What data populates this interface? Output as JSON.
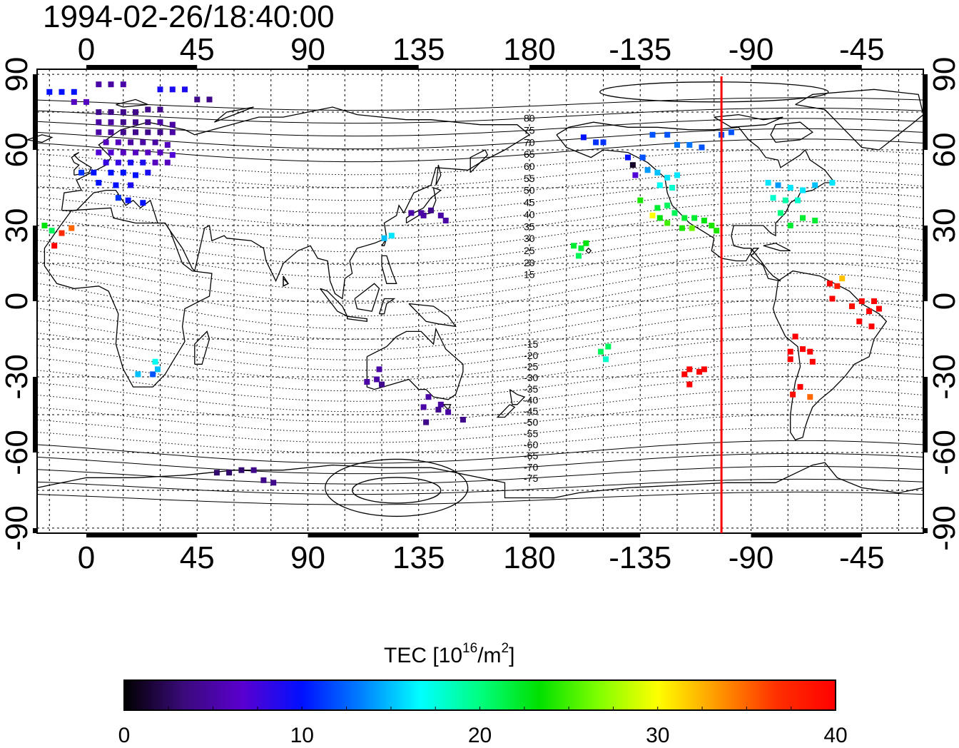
{
  "title": "1994-02-26/18:40:00",
  "map": {
    "lon_ticks": [
      "0",
      "45",
      "90",
      "135",
      "180",
      "-135",
      "-90",
      "-45"
    ],
    "lat_ticks": [
      "90",
      "60",
      "30",
      "0",
      "-30",
      "-60",
      "-90"
    ],
    "lon_tick_values": [
      0,
      45,
      90,
      135,
      180,
      225,
      270,
      315
    ],
    "lat_tick_values": [
      90,
      60,
      30,
      0,
      -30,
      -60,
      -90
    ],
    "lon_range": [
      -20,
      340
    ],
    "lat_range": [
      -92,
      92
    ],
    "grid": true,
    "terminator_line": {
      "lon": 258,
      "color": "#ff0000"
    },
    "mlat_labels_north": [
      "80",
      "75",
      "70",
      "65",
      "60",
      "55",
      "50",
      "45",
      "40",
      "35",
      "30",
      "25",
      "20",
      "15"
    ],
    "mlat_labels_south": [
      "-15",
      "-20",
      "-25",
      "-30",
      "-35",
      "-40",
      "-45",
      "-50",
      "-55",
      "-60",
      "-65",
      "-70",
      "-75"
    ]
  },
  "colorbar": {
    "label_prefix": "TEC  [10",
    "label_sup1": "16",
    "label_mid": "/m",
    "label_sup2": "2",
    "label_suffix": "]",
    "ticks": [
      "0",
      "10",
      "20",
      "30",
      "40"
    ],
    "tick_values": [
      0,
      10,
      20,
      30,
      40
    ],
    "range": [
      0,
      40
    ],
    "colors": [
      "#000000",
      "#3a0a7a",
      "#5a00d0",
      "#0010ff",
      "#0080ff",
      "#00ffff",
      "#00ff80",
      "#00e000",
      "#80ff00",
      "#ffff00",
      "#ff9900",
      "#ff3000",
      "#ff0000"
    ]
  },
  "tec_points": [
    {
      "lon": -15,
      "lat": 83,
      "tec": 10
    },
    {
      "lon": -10,
      "lat": 83,
      "tec": 10
    },
    {
      "lon": -5,
      "lat": 83,
      "tec": 10
    },
    {
      "lon": 5,
      "lat": 86,
      "tec": 5
    },
    {
      "lon": 10,
      "lat": 86,
      "tec": 5
    },
    {
      "lon": 15,
      "lat": 86,
      "tec": 5
    },
    {
      "lon": 30,
      "lat": 84,
      "tec": 9
    },
    {
      "lon": 35,
      "lat": 84,
      "tec": 9
    },
    {
      "lon": 40,
      "lat": 84,
      "tec": 9
    },
    {
      "lon": 45,
      "lat": 80,
      "tec": 4
    },
    {
      "lon": 50,
      "lat": 80,
      "tec": 4
    },
    {
      "lon": -5,
      "lat": 79,
      "tec": 6
    },
    {
      "lon": 0,
      "lat": 79,
      "tec": 6
    },
    {
      "lon": 5,
      "lat": 75,
      "tec": 4
    },
    {
      "lon": 10,
      "lat": 75,
      "tec": 4
    },
    {
      "lon": 15,
      "lat": 75,
      "tec": 4
    },
    {
      "lon": 20,
      "lat": 75,
      "tec": 4
    },
    {
      "lon": 25,
      "lat": 76,
      "tec": 4
    },
    {
      "lon": 30,
      "lat": 76,
      "tec": 4
    },
    {
      "lon": 5,
      "lat": 71,
      "tec": 5
    },
    {
      "lon": 10,
      "lat": 71,
      "tec": 5
    },
    {
      "lon": 15,
      "lat": 71,
      "tec": 4
    },
    {
      "lon": 20,
      "lat": 71,
      "tec": 4
    },
    {
      "lon": 25,
      "lat": 71,
      "tec": 4
    },
    {
      "lon": 30,
      "lat": 71,
      "tec": 5
    },
    {
      "lon": 35,
      "lat": 70,
      "tec": 5
    },
    {
      "lon": 5,
      "lat": 67,
      "tec": 5
    },
    {
      "lon": 10,
      "lat": 67,
      "tec": 5
    },
    {
      "lon": 15,
      "lat": 67,
      "tec": 4
    },
    {
      "lon": 20,
      "lat": 67,
      "tec": 4
    },
    {
      "lon": 25,
      "lat": 67,
      "tec": 4
    },
    {
      "lon": 30,
      "lat": 67,
      "tec": 4
    },
    {
      "lon": 35,
      "lat": 67,
      "tec": 5
    },
    {
      "lon": 8,
      "lat": 63,
      "tec": 6
    },
    {
      "lon": 13,
      "lat": 63,
      "tec": 6
    },
    {
      "lon": 18,
      "lat": 63,
      "tec": 5
    },
    {
      "lon": 23,
      "lat": 63,
      "tec": 5
    },
    {
      "lon": 28,
      "lat": 63,
      "tec": 5
    },
    {
      "lon": 33,
      "lat": 62,
      "tec": 6
    },
    {
      "lon": 5,
      "lat": 59,
      "tec": 7
    },
    {
      "lon": 10,
      "lat": 59,
      "tec": 7
    },
    {
      "lon": 15,
      "lat": 59,
      "tec": 6
    },
    {
      "lon": 20,
      "lat": 59,
      "tec": 6
    },
    {
      "lon": 25,
      "lat": 59,
      "tec": 6
    },
    {
      "lon": 30,
      "lat": 59,
      "tec": 6
    },
    {
      "lon": 35,
      "lat": 58,
      "tec": 7
    },
    {
      "lon": 8,
      "lat": 55,
      "tec": 8
    },
    {
      "lon": 13,
      "lat": 55,
      "tec": 8
    },
    {
      "lon": 18,
      "lat": 55,
      "tec": 9
    },
    {
      "lon": 23,
      "lat": 55,
      "tec": 9
    },
    {
      "lon": 28,
      "lat": 55,
      "tec": 6
    },
    {
      "lon": 33,
      "lat": 55,
      "tec": 6
    },
    {
      "lon": -2,
      "lat": 51,
      "tec": 11
    },
    {
      "lon": 3,
      "lat": 51,
      "tec": 10
    },
    {
      "lon": 10,
      "lat": 51,
      "tec": 10
    },
    {
      "lon": 15,
      "lat": 51,
      "tec": 10
    },
    {
      "lon": 20,
      "lat": 50,
      "tec": 10
    },
    {
      "lon": 25,
      "lat": 51,
      "tec": 9
    },
    {
      "lon": 5,
      "lat": 47,
      "tec": 10
    },
    {
      "lon": 12,
      "lat": 46,
      "tec": 10
    },
    {
      "lon": 18,
      "lat": 46,
      "tec": 9
    },
    {
      "lon": 13,
      "lat": 41,
      "tec": 11
    },
    {
      "lon": 17,
      "lat": 40,
      "tec": 10
    },
    {
      "lon": 23,
      "lat": 39,
      "tec": 10
    },
    {
      "lon": -17,
      "lat": 30,
      "tec": 23
    },
    {
      "lon": -14,
      "lat": 28,
      "tec": 21
    },
    {
      "lon": -10,
      "lat": 27,
      "tec": 37
    },
    {
      "lon": -6,
      "lat": 29,
      "tec": 35
    },
    {
      "lon": -13,
      "lat": 22,
      "tec": 40
    },
    {
      "lon": 28,
      "lat": -24,
      "tec": 17
    },
    {
      "lon": 21,
      "lat": -29,
      "tec": 15
    },
    {
      "lon": 27,
      "lat": -29,
      "tec": 12
    },
    {
      "lon": 29,
      "lat": -27,
      "tec": 15
    },
    {
      "lon": 114,
      "lat": -32,
      "tec": 5
    },
    {
      "lon": 119,
      "lat": -27,
      "tec": 5
    },
    {
      "lon": 118,
      "lat": -31,
      "tec": 5
    },
    {
      "lon": 120,
      "lat": -33,
      "tec": 4
    },
    {
      "lon": 139,
      "lat": -38,
      "tec": 5
    },
    {
      "lon": 144,
      "lat": -41,
      "tec": 5
    },
    {
      "lon": 137,
      "lat": -42,
      "tec": 5
    },
    {
      "lon": 143,
      "lat": -43,
      "tec": 4
    },
    {
      "lon": 147,
      "lat": -44,
      "tec": 5
    },
    {
      "lon": 138,
      "lat": -48,
      "tec": 4
    },
    {
      "lon": 153,
      "lat": -47,
      "tec": 4
    },
    {
      "lon": 132,
      "lat": 35,
      "tec": 5
    },
    {
      "lon": 136,
      "lat": 35,
      "tec": 5
    },
    {
      "lon": 140,
      "lat": 36,
      "tec": 4
    },
    {
      "lon": 144,
      "lat": 34,
      "tec": 5
    },
    {
      "lon": 137,
      "lat": 34,
      "tec": 5
    },
    {
      "lon": 146,
      "lat": 32,
      "tec": 5
    },
    {
      "lon": 121,
      "lat": 25,
      "tec": 15
    },
    {
      "lon": 124,
      "lat": 26,
      "tec": 16
    },
    {
      "lon": 53,
      "lat": -68,
      "tec": 3
    },
    {
      "lon": 58,
      "lat": -68,
      "tec": 3
    },
    {
      "lon": 63,
      "lat": -67,
      "tec": 3
    },
    {
      "lon": 68,
      "lat": -67,
      "tec": 4
    },
    {
      "lon": 72,
      "lat": -71,
      "tec": 4
    },
    {
      "lon": 76,
      "lat": -72,
      "tec": 4
    },
    {
      "lon": 202,
      "lat": 65,
      "tec": 10
    },
    {
      "lon": 207,
      "lat": 63,
      "tec": 11
    },
    {
      "lon": 210,
      "lat": 63,
      "tec": 11
    },
    {
      "lon": 220,
      "lat": 57,
      "tec": 10
    },
    {
      "lon": 222,
      "lat": 54,
      "tec": 1
    },
    {
      "lon": 226,
      "lat": 57,
      "tec": 12
    },
    {
      "lon": 223,
      "lat": 50,
      "tec": 7
    },
    {
      "lon": 228,
      "lat": 52,
      "tec": 14
    },
    {
      "lon": 232,
      "lat": 51,
      "tec": 15
    },
    {
      "lon": 236,
      "lat": 49,
      "tec": 16
    },
    {
      "lon": 240,
      "lat": 50,
      "tec": 16
    },
    {
      "lon": 233,
      "lat": 46,
      "tec": 17
    },
    {
      "lon": 238,
      "lat": 45,
      "tec": 18
    },
    {
      "lon": 230,
      "lat": 66,
      "tec": 12
    },
    {
      "lon": 236,
      "lat": 66,
      "tec": 12
    },
    {
      "lon": 240,
      "lat": 62,
      "tec": 13
    },
    {
      "lon": 245,
      "lat": 62,
      "tec": 13
    },
    {
      "lon": 250,
      "lat": 61,
      "tec": 12
    },
    {
      "lon": 258,
      "lat": 66,
      "tec": 12
    },
    {
      "lon": 262,
      "lat": 67,
      "tec": 12
    },
    {
      "lon": 225,
      "lat": 40,
      "tec": 24
    },
    {
      "lon": 232,
      "lat": 37,
      "tec": 22
    },
    {
      "lon": 236,
      "lat": 38,
      "tec": 21
    },
    {
      "lon": 239,
      "lat": 35,
      "tec": 21
    },
    {
      "lon": 243,
      "lat": 33,
      "tec": 22
    },
    {
      "lon": 247,
      "lat": 33,
      "tec": 22
    },
    {
      "lon": 251,
      "lat": 32,
      "tec": 23
    },
    {
      "lon": 254,
      "lat": 30,
      "tec": 24
    },
    {
      "lon": 236,
      "lat": 31,
      "tec": 25
    },
    {
      "lon": 242,
      "lat": 29,
      "tec": 24
    },
    {
      "lon": 246,
      "lat": 29,
      "tec": 26
    },
    {
      "lon": 230,
      "lat": 34,
      "tec": 30
    },
    {
      "lon": 256,
      "lat": 28,
      "tec": 24
    },
    {
      "lon": 233,
      "lat": 33,
      "tec": 23
    },
    {
      "lon": 277,
      "lat": 47,
      "tec": 16
    },
    {
      "lon": 281,
      "lat": 46,
      "tec": 14
    },
    {
      "lon": 286,
      "lat": 45,
      "tec": 16
    },
    {
      "lon": 291,
      "lat": 44,
      "tec": 16
    },
    {
      "lon": 296,
      "lat": 46,
      "tec": 15
    },
    {
      "lon": 303,
      "lat": 47,
      "tec": 16
    },
    {
      "lon": 279,
      "lat": 41,
      "tec": 18
    },
    {
      "lon": 284,
      "lat": 40,
      "tec": 19
    },
    {
      "lon": 289,
      "lat": 40,
      "tec": 18
    },
    {
      "lon": 282,
      "lat": 35,
      "tec": 20
    },
    {
      "lon": 286,
      "lat": 30,
      "tec": 22
    },
    {
      "lon": 291,
      "lat": 33,
      "tec": 22
    },
    {
      "lon": 296,
      "lat": 32,
      "tec": 22
    },
    {
      "lon": 198,
      "lat": 22,
      "tec": 22
    },
    {
      "lon": 201,
      "lat": 21,
      "tec": 22
    },
    {
      "lon": 203,
      "lat": 23,
      "tec": 23
    },
    {
      "lon": 200,
      "lat": 18,
      "tec": 21
    },
    {
      "lon": 209,
      "lat": -20,
      "tec": 21
    },
    {
      "lon": 212,
      "lat": -18,
      "tec": 21
    },
    {
      "lon": 211,
      "lat": -23,
      "tec": 18
    },
    {
      "lon": 245,
      "lat": -27,
      "tec": 40
    },
    {
      "lon": 249,
      "lat": -28,
      "tec": 40
    },
    {
      "lon": 251,
      "lat": -27,
      "tec": 40
    },
    {
      "lon": 245,
      "lat": -33,
      "tec": 40
    },
    {
      "lon": 243,
      "lat": -29,
      "tec": 40
    },
    {
      "lon": 288,
      "lat": -14,
      "tec": 40
    },
    {
      "lon": 291,
      "lat": -19,
      "tec": 40
    },
    {
      "lon": 286,
      "lat": -20,
      "tec": 40
    },
    {
      "lon": 294,
      "lat": -20,
      "tec": 40
    },
    {
      "lon": 295,
      "lat": -24,
      "tec": 40
    },
    {
      "lon": 290,
      "lat": -34,
      "tec": 40
    },
    {
      "lon": 287,
      "lat": -37,
      "tec": 39
    },
    {
      "lon": 294,
      "lat": -38,
      "tec": 35
    },
    {
      "lon": 286,
      "lat": -23,
      "tec": 40
    },
    {
      "lon": 302,
      "lat": 7,
      "tec": 40
    },
    {
      "lon": 305,
      "lat": 6,
      "tec": 38
    },
    {
      "lon": 307,
      "lat": 9,
      "tec": 32
    },
    {
      "lon": 303,
      "lat": 1,
      "tec": 40
    },
    {
      "lon": 315,
      "lat": 0,
      "tec": 40
    },
    {
      "lon": 320,
      "lat": 0,
      "tec": 40
    },
    {
      "lon": 318,
      "lat": -4,
      "tec": 40
    },
    {
      "lon": 322,
      "lat": -3,
      "tec": 40
    },
    {
      "lon": 314,
      "lat": -8,
      "tec": 40
    },
    {
      "lon": 319,
      "lat": -10,
      "tec": 40
    },
    {
      "lon": 311,
      "lat": -2,
      "tec": 39
    }
  ]
}
